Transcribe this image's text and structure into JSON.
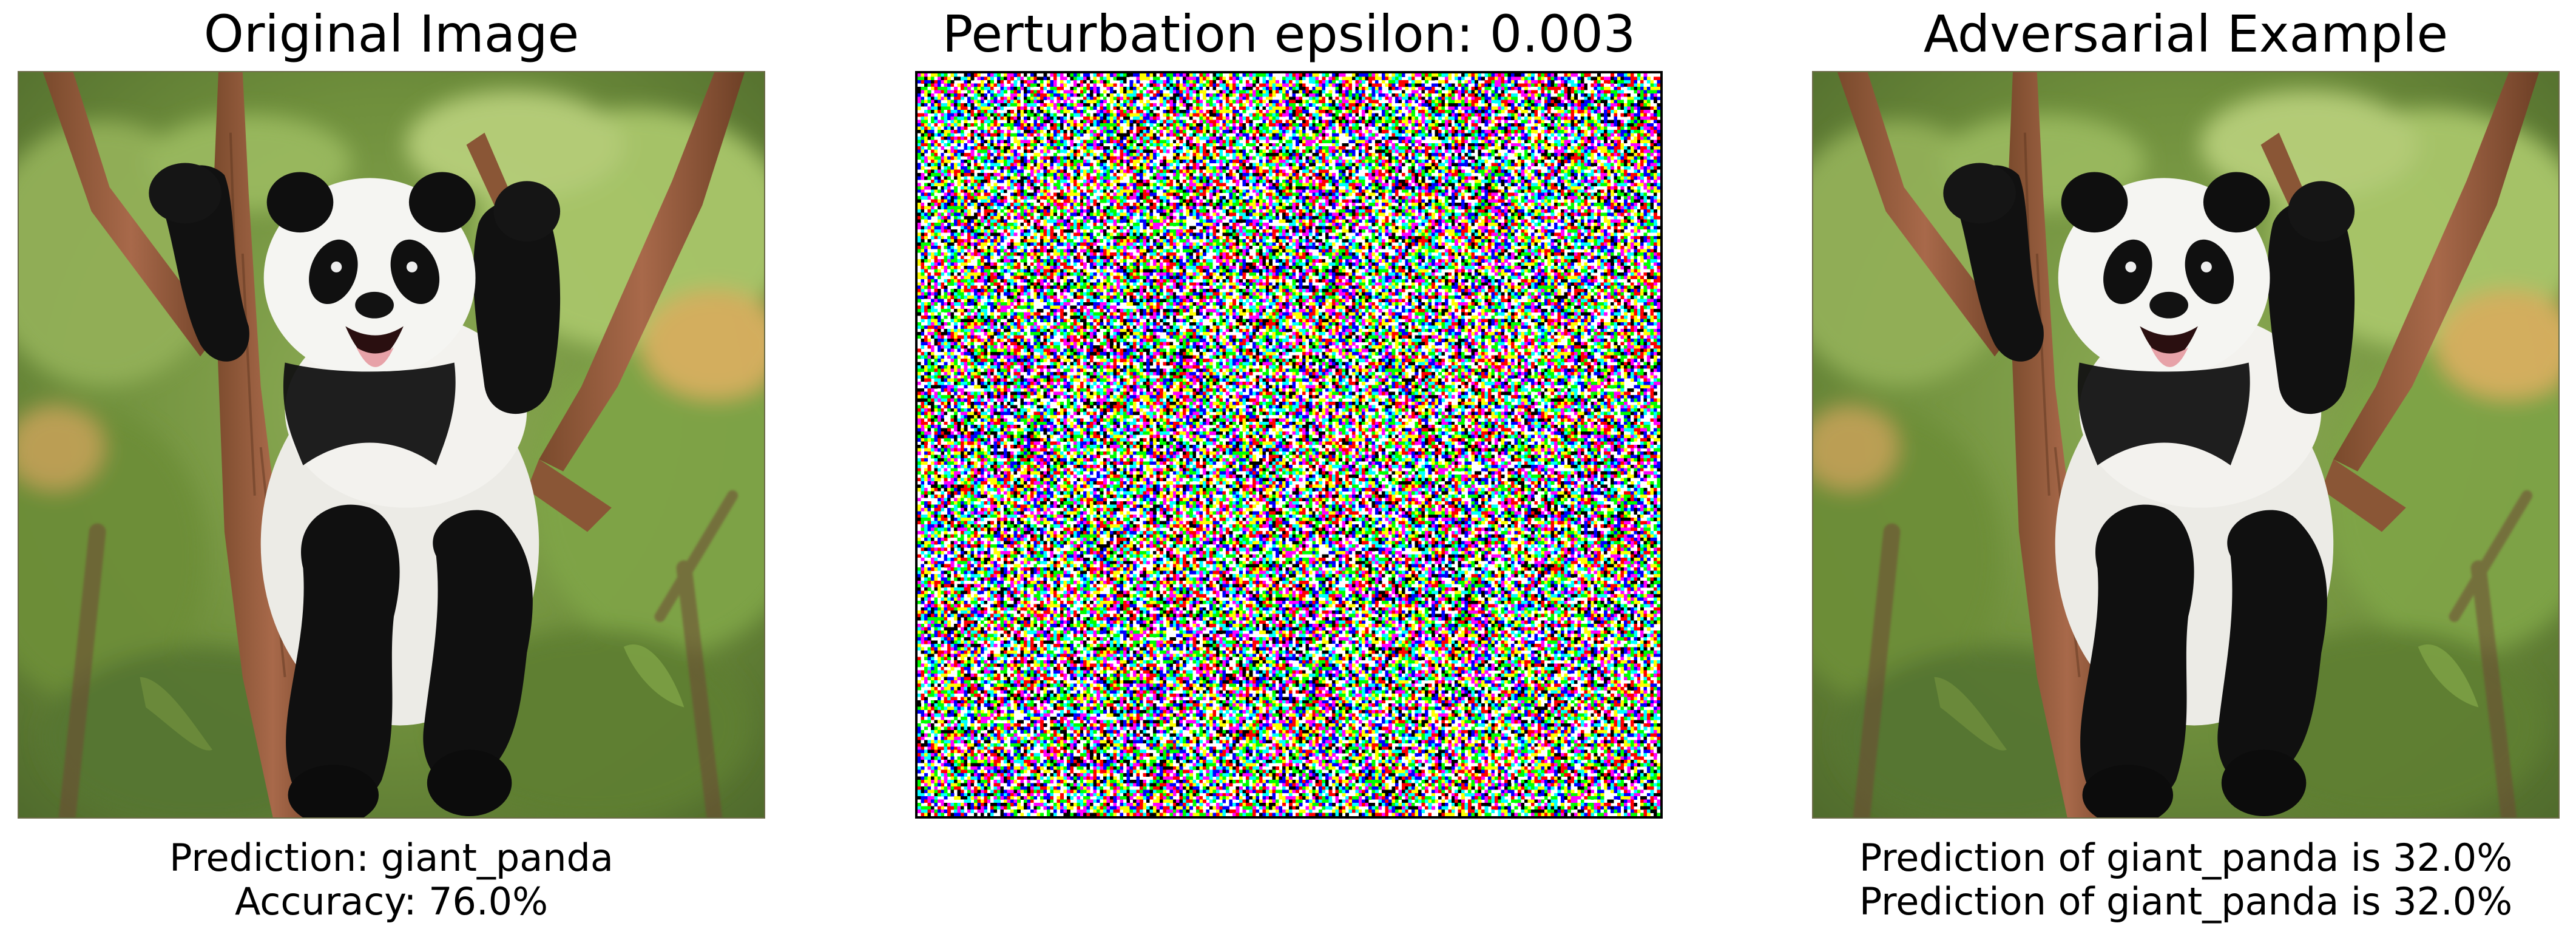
{
  "panels": {
    "original": {
      "title": "Original Image",
      "prediction_line": "Prediction: giant_panda",
      "accuracy_line": "Accuracy: 76.0%"
    },
    "perturbation": {
      "title": "Perturbation epsilon: 0.003"
    },
    "adversarial": {
      "title": "Adversarial Example",
      "prediction_line_1": "Prediction of giant_panda is 32.0%",
      "prediction_line_2": "Prediction of giant_panda is 32.0%"
    }
  },
  "image_content": {
    "photo_subject": "giant-panda-in-tree",
    "noise_palette": [
      "#ff0000",
      "#00ff00",
      "#0000ff",
      "#ffff00",
      "#ff00ff",
      "#00ffff",
      "#000000",
      "#ffffff"
    ]
  }
}
